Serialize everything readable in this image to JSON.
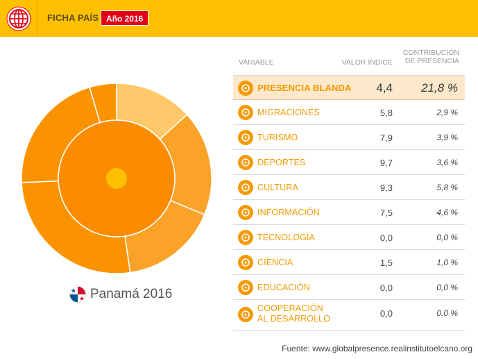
{
  "header": {
    "title": "FICHA PAÍS",
    "year_badge": "Año 2016",
    "logo_icon": "globe-icon"
  },
  "country": {
    "label": "Panamá 2016",
    "flag_icon": "panama-flag-icon"
  },
  "table": {
    "headers": {
      "variable": "VARIABLE",
      "valor": "VALOR ÍNDICE",
      "contrib_line1": "CONTRIBUCIÓN",
      "contrib_line2": "DE PRESENCIA"
    },
    "rows": [
      {
        "label": "PRESENCIA BLANDA",
        "valor": "4,4",
        "contrib": "21,8 %",
        "icon": "soft-presence-icon"
      },
      {
        "label": "MIGRACIONES",
        "valor": "5,8",
        "contrib": "2,9 %",
        "icon": "migration-icon"
      },
      {
        "label": "TURISMO",
        "valor": "7,9",
        "contrib": "3,9 %",
        "icon": "tourism-icon"
      },
      {
        "label": "DEPORTES",
        "valor": "9,7",
        "contrib": "3,6 %",
        "icon": "sports-icon"
      },
      {
        "label": "CULTURA",
        "valor": "9,3",
        "contrib": "5,8 %",
        "icon": "culture-icon"
      },
      {
        "label": "INFORMACIÓN",
        "valor": "7,5",
        "contrib": "4,6 %",
        "icon": "information-icon"
      },
      {
        "label": "TECNOLOGÍA",
        "valor": "0,0",
        "contrib": "0,0 %",
        "icon": "technology-icon"
      },
      {
        "label": "CIENCIA",
        "valor": "1,5",
        "contrib": "1,0 %",
        "icon": "science-icon"
      },
      {
        "label": "EDUCACIÓN",
        "valor": "0,0",
        "contrib": "0,0 %",
        "icon": "education-icon"
      },
      {
        "label": "COOPERACIÓN\nAL DESARROLLO",
        "valor": "0,0",
        "contrib": "0,0 %",
        "icon": "cooperation-icon"
      }
    ]
  },
  "footer": {
    "source": "Fuente: www.globalpresence.realinstitutoelcano.org"
  },
  "chart_data": {
    "type": "pie",
    "subtype": "sunburst",
    "center_color": "#fec000",
    "inner_ring": {
      "categories": [
        "Presencia blanda"
      ],
      "values": [
        21.8
      ],
      "color": "#fb8c00"
    },
    "outer_ring": {
      "categories": [
        "Migraciones",
        "Turismo",
        "Deportes",
        "Cultura",
        "Información",
        "Tecnología",
        "Ciencia",
        "Educación",
        "Cooperación al desarrollo"
      ],
      "values": [
        2.9,
        3.9,
        3.6,
        5.8,
        4.6,
        0.0,
        1.0,
        0.0,
        0.0
      ],
      "colors": [
        "#ffc96b",
        "#fba329",
        "#fba329",
        "#fb9300",
        "#fb9300",
        "#fb9300",
        "#fb9300",
        "#fb9300",
        "#fb9300"
      ]
    }
  },
  "colors": {
    "header_bg": "#fec000",
    "badge_bg": "#e2001a",
    "accent": "#f39a00",
    "highlight_row": "#fde8cc"
  }
}
